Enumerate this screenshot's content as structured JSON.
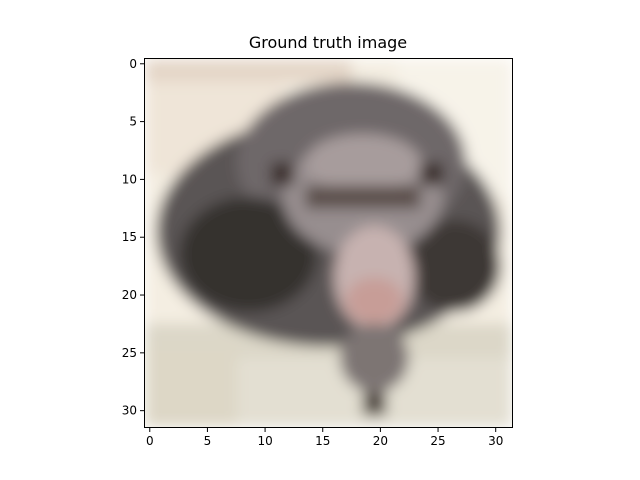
{
  "title": "Ground truth image",
  "image": {
    "description_icon": "chimpanzee-face-photo",
    "resolution": [
      32,
      32
    ],
    "palette": {
      "background_light": "#f6f0e4",
      "fur_dark": "#4e4a4a",
      "fur_mid": "#8a8283",
      "face_light": "#b9aaa9",
      "muzzle_pink": "#c8a39f",
      "shadow_black": "#2a221e",
      "ground_beige": "#dcd7c8"
    }
  },
  "axes": {
    "x_ticks": [
      "0",
      "5",
      "10",
      "15",
      "20",
      "25",
      "30"
    ],
    "y_ticks": [
      "0",
      "5",
      "10",
      "15",
      "20",
      "25",
      "30"
    ]
  }
}
